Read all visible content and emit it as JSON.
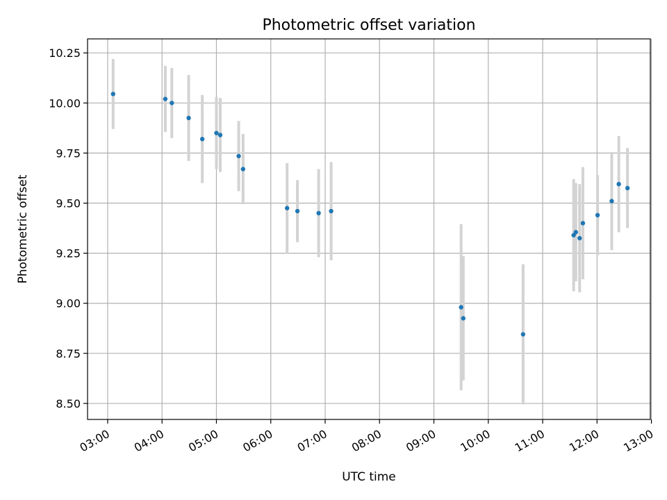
{
  "chart_data": {
    "type": "scatter",
    "title": "Photometric offset variation",
    "xlabel": "UTC time",
    "ylabel": "Photometric offset",
    "x_unit": "hours UTC",
    "xlim": [
      2.63,
      12.98
    ],
    "ylim": [
      8.42,
      10.32
    ],
    "grid": true,
    "x_ticks": [
      {
        "value": 3,
        "label": "03:00"
      },
      {
        "value": 4,
        "label": "04:00"
      },
      {
        "value": 5,
        "label": "05:00"
      },
      {
        "value": 6,
        "label": "06:00"
      },
      {
        "value": 7,
        "label": "07:00"
      },
      {
        "value": 8,
        "label": "08:00"
      },
      {
        "value": 9,
        "label": "09:00"
      },
      {
        "value": 10,
        "label": "10:00"
      },
      {
        "value": 11,
        "label": "11:00"
      },
      {
        "value": 12,
        "label": "12:00"
      },
      {
        "value": 13,
        "label": "13:00"
      }
    ],
    "y_ticks": [
      {
        "value": 8.5,
        "label": "8.50"
      },
      {
        "value": 8.75,
        "label": "8.75"
      },
      {
        "value": 9.0,
        "label": "9.00"
      },
      {
        "value": 9.25,
        "label": "9.25"
      },
      {
        "value": 9.5,
        "label": "9.50"
      },
      {
        "value": 9.75,
        "label": "9.75"
      },
      {
        "value": 10.0,
        "label": "10.00"
      },
      {
        "value": 10.25,
        "label": "10.25"
      }
    ],
    "colors": {
      "point": "#1f77b4",
      "errorbar": "#d3d3d3",
      "grid": "#b0b0b0"
    },
    "series": [
      {
        "points": [
          {
            "x": 3.1,
            "y": 10.045,
            "err": 0.175
          },
          {
            "x": 4.06,
            "y": 10.02,
            "err": 0.165
          },
          {
            "x": 4.18,
            "y": 10.0,
            "err": 0.175
          },
          {
            "x": 4.49,
            "y": 9.925,
            "err": 0.215
          },
          {
            "x": 4.74,
            "y": 9.82,
            "err": 0.22
          },
          {
            "x": 5.0,
            "y": 9.85,
            "err": 0.18
          },
          {
            "x": 5.07,
            "y": 9.84,
            "err": 0.185
          },
          {
            "x": 5.41,
            "y": 9.735,
            "err": 0.175
          },
          {
            "x": 5.49,
            "y": 9.67,
            "err": 0.175
          },
          {
            "x": 6.3,
            "y": 9.475,
            "err": 0.225
          },
          {
            "x": 6.49,
            "y": 9.46,
            "err": 0.155
          },
          {
            "x": 6.88,
            "y": 9.45,
            "err": 0.22
          },
          {
            "x": 7.11,
            "y": 9.46,
            "err": 0.245
          },
          {
            "x": 9.5,
            "y": 8.98,
            "err": 0.415
          },
          {
            "x": 9.54,
            "y": 8.925,
            "err": 0.31
          },
          {
            "x": 10.64,
            "y": 8.845,
            "err": 0.35
          },
          {
            "x": 11.57,
            "y": 9.34,
            "err": 0.28
          },
          {
            "x": 11.61,
            "y": 9.355,
            "err": 0.245
          },
          {
            "x": 11.68,
            "y": 9.325,
            "err": 0.27
          },
          {
            "x": 11.74,
            "y": 9.4,
            "err": 0.28
          },
          {
            "x": 12.01,
            "y": 9.44,
            "err": 0.2
          },
          {
            "x": 12.27,
            "y": 9.51,
            "err": 0.245
          },
          {
            "x": 12.4,
            "y": 9.595,
            "err": 0.24
          },
          {
            "x": 12.56,
            "y": 9.575,
            "err": 0.2
          }
        ]
      }
    ]
  }
}
